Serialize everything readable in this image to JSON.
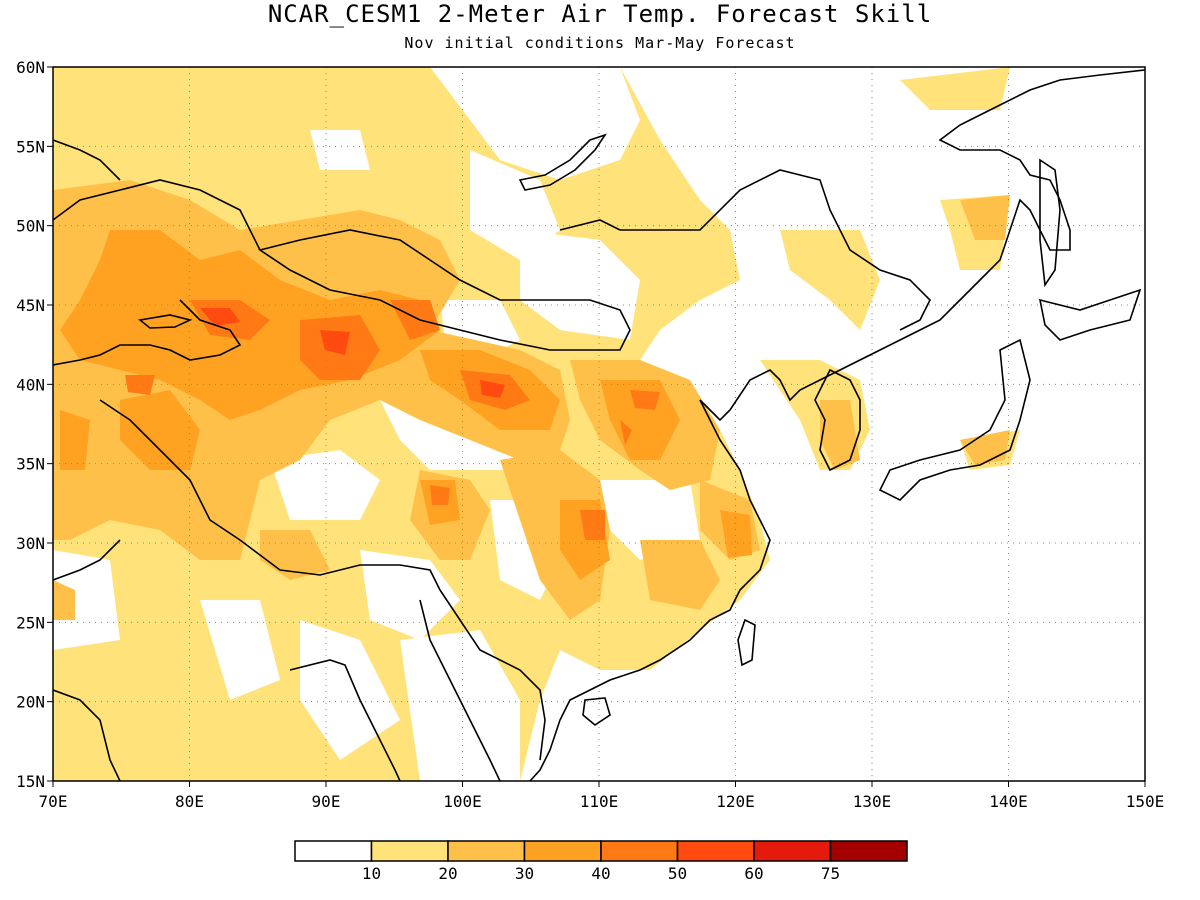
{
  "title": "NCAR_CESM1 2-Meter Air Temp. Forecast Skill",
  "subtitle": "Nov initial conditions  Mar-May Forecast",
  "map": {
    "lon_range": [
      70,
      150
    ],
    "lat_range": [
      15,
      60
    ],
    "lon_ticks": [
      "70E",
      "80E",
      "90E",
      "100E",
      "110E",
      "120E",
      "130E",
      "140E",
      "150E"
    ],
    "lat_ticks": [
      "15N",
      "20N",
      "25N",
      "30N",
      "35N",
      "40N",
      "45N",
      "50N",
      "55N",
      "60N"
    ],
    "gridlines": "dotted",
    "land_outline_color": "#000000"
  },
  "colorbar": {
    "colors": [
      "#ffffff",
      "#ffe27a",
      "#ffc04a",
      "#ffa222",
      "#ff7a14",
      "#ff4a10",
      "#e31a0c",
      "#a50000"
    ],
    "labels": [
      "10",
      "20",
      "30",
      "40",
      "50",
      "60",
      "75"
    ]
  }
}
